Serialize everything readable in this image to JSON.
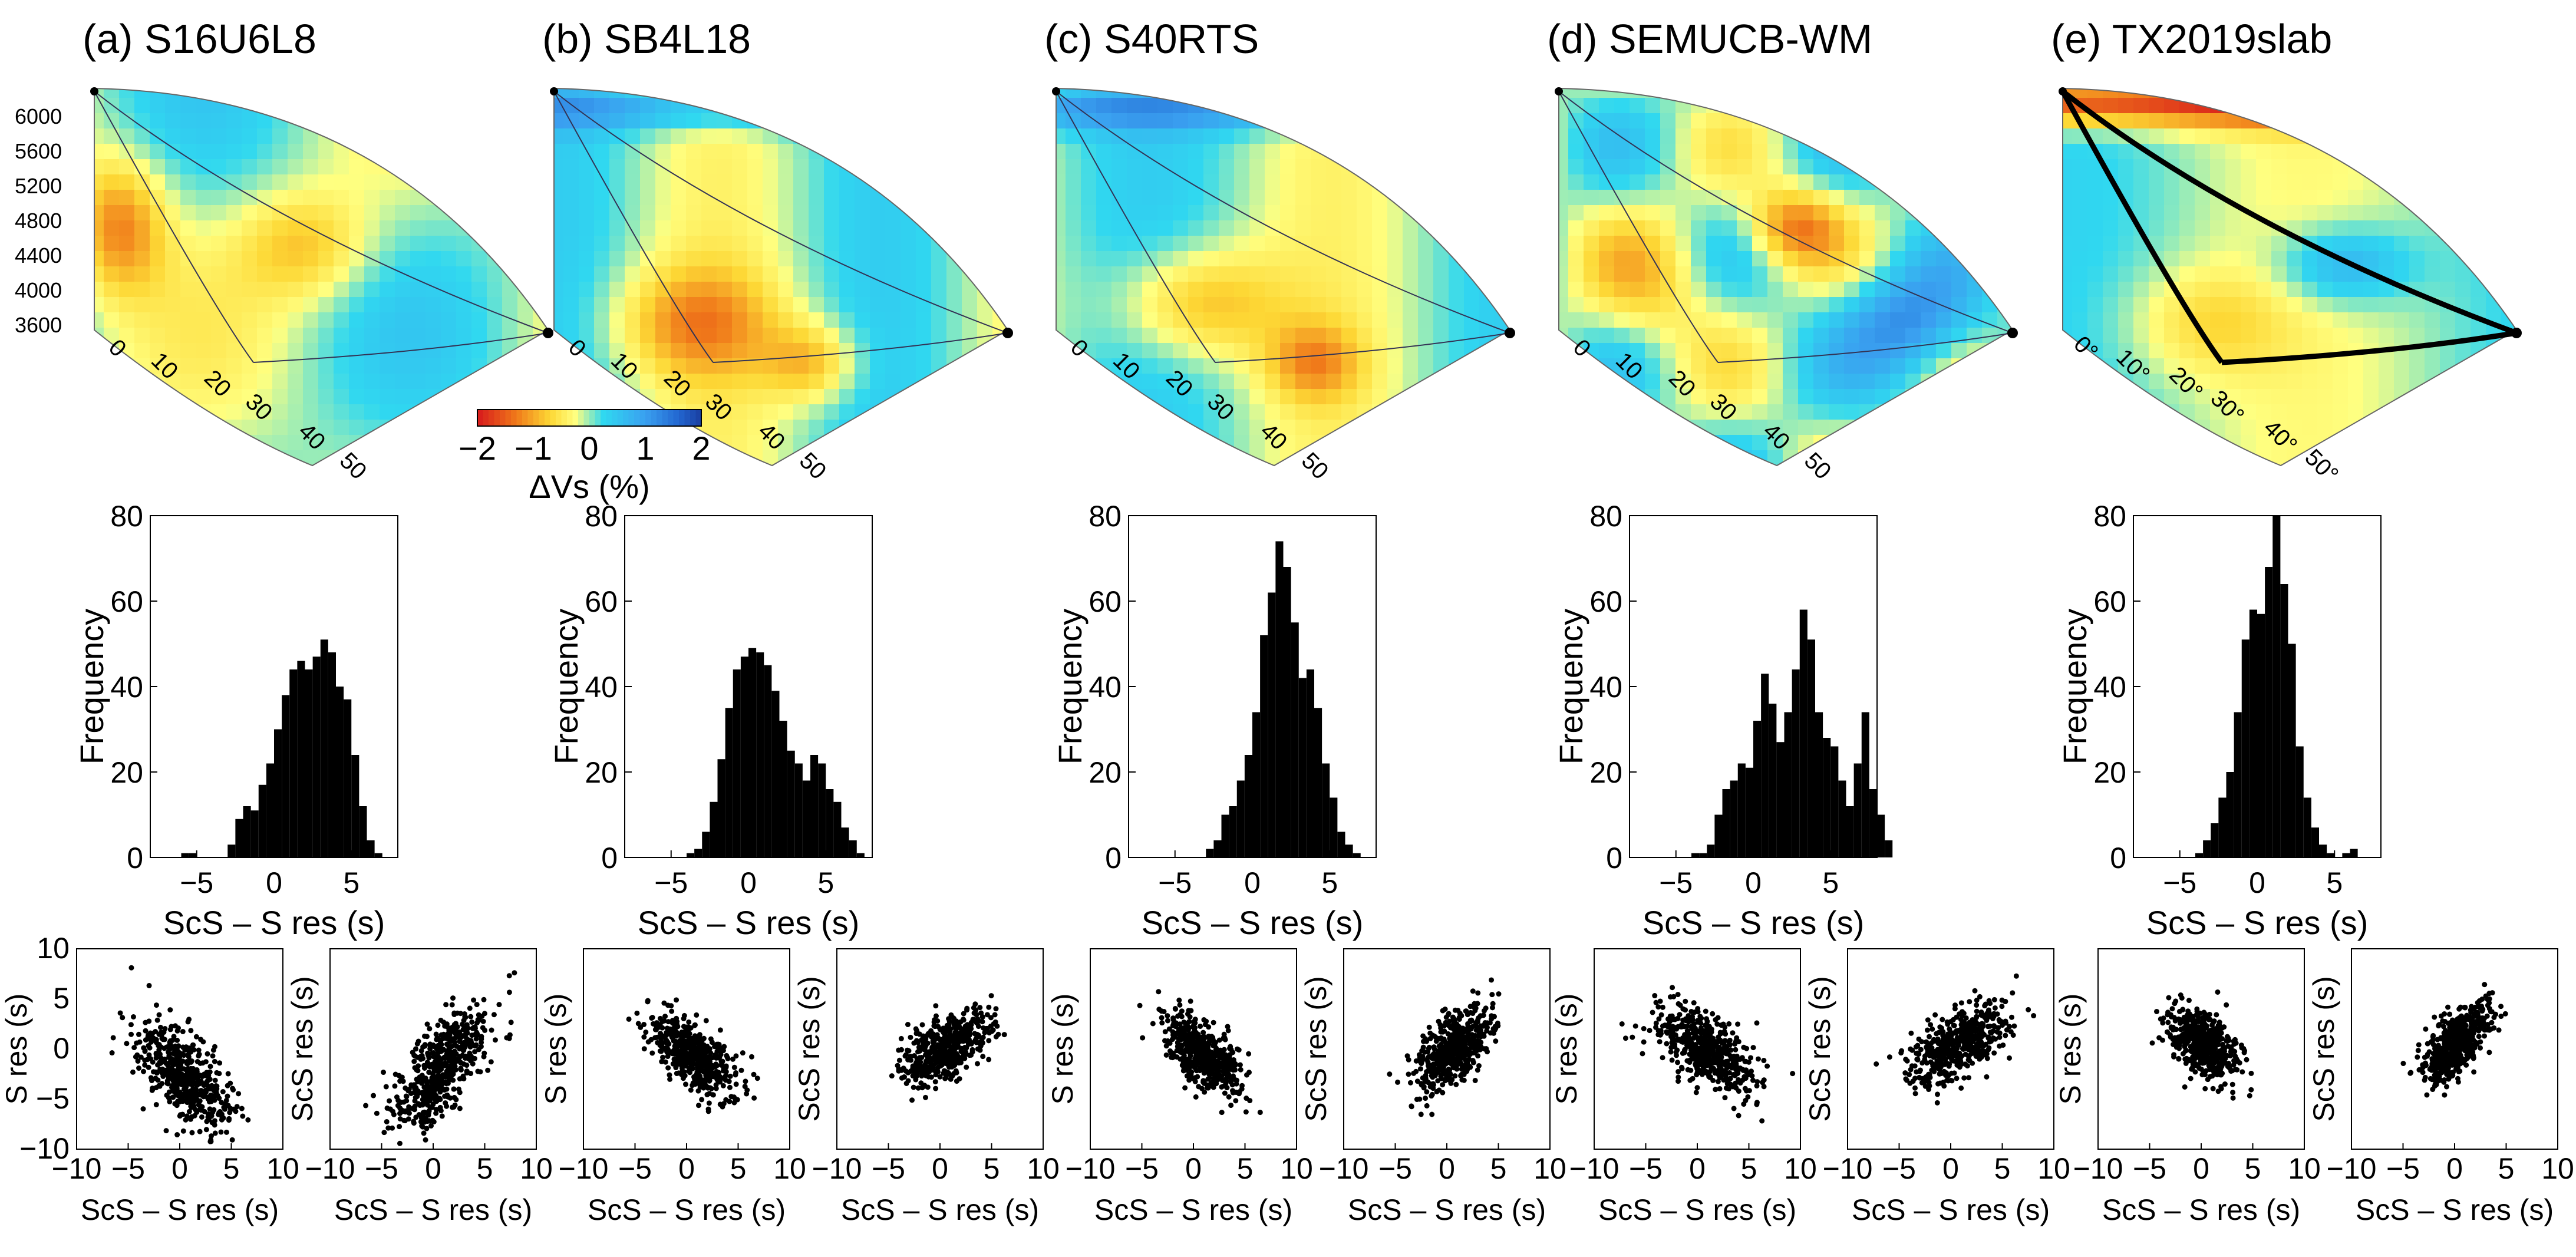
{
  "colorbar": {
    "label": "ΔVs (%)",
    "ticks": [
      "−2",
      "−1",
      "0",
      "1",
      "2"
    ],
    "colors": [
      "#d7191c",
      "#fdae61",
      "#ffff8c",
      "#ffff8c",
      "#40e0f0",
      "#40e0f0",
      "#2c7bb6",
      "#1a3ea0"
    ]
  },
  "chart_data": [
    {
      "type": "cross-section",
      "title": "(a) S16U6L8",
      "depth_ticks": [
        "6000",
        "5600",
        "5200",
        "4800",
        "4400",
        "4000",
        "3600"
      ],
      "angle_ticks": [
        "0",
        "10",
        "20",
        "30",
        "40",
        "50"
      ],
      "ray_count": 3
    },
    {
      "type": "cross-section",
      "title": "(b) SB4L18",
      "depth_ticks": [],
      "angle_ticks": [
        "0",
        "10",
        "20",
        "30",
        "40",
        "50"
      ],
      "ray_count": 3
    },
    {
      "type": "cross-section",
      "title": "(c) S40RTS",
      "depth_ticks": [],
      "angle_ticks": [
        "0",
        "10",
        "20",
        "30",
        "40",
        "50"
      ],
      "ray_count": 3
    },
    {
      "type": "cross-section",
      "title": "(d) SEMUCB-WM",
      "depth_ticks": [],
      "angle_ticks": [
        "0",
        "10",
        "20",
        "30",
        "40",
        "50"
      ],
      "ray_count": 3
    },
    {
      "type": "cross-section",
      "title": "(e) TX2019slab",
      "depth_ticks": [],
      "angle_ticks": [
        "0°",
        "10°",
        "20°",
        "30°",
        "40°",
        "50°"
      ],
      "ray_count": 3
    },
    {
      "type": "bar",
      "model": "S16U6L8",
      "xlabel": "ScS – S res (s)",
      "ylabel": "Frequency",
      "xlim": [
        -8,
        8
      ],
      "ylim": [
        0,
        80
      ],
      "xticks": [
        "−5",
        "0",
        "5"
      ],
      "yticks": [
        "0",
        "20",
        "40",
        "60",
        "80"
      ],
      "bin_width": 0.5,
      "bin_start": -6,
      "values": [
        1,
        1,
        0,
        0,
        0,
        0,
        3,
        9,
        12,
        11,
        17,
        22,
        30,
        38,
        44,
        46,
        44,
        47,
        51,
        48,
        40,
        37,
        24,
        12,
        4,
        1
      ]
    },
    {
      "type": "bar",
      "model": "SB4L18",
      "xlabel": "ScS – S res (s)",
      "ylabel": "Frequency",
      "xlim": [
        -8,
        8
      ],
      "ylim": [
        0,
        80
      ],
      "xticks": [
        "−5",
        "0",
        "5"
      ],
      "yticks": [
        "0",
        "20",
        "40",
        "60",
        "80"
      ],
      "bin_width": 0.5,
      "bin_start": -4,
      "values": [
        1,
        2,
        6,
        13,
        23,
        35,
        44,
        47,
        49,
        48,
        45,
        39,
        32,
        25,
        22,
        18,
        24,
        22,
        16,
        13,
        7,
        4,
        1
      ]
    },
    {
      "type": "bar",
      "model": "S40RTS",
      "xlabel": "ScS – S res (s)",
      "ylabel": "Frequency",
      "xlim": [
        -8,
        8
      ],
      "ylim": [
        0,
        80
      ],
      "xticks": [
        "−5",
        "0",
        "5"
      ],
      "yticks": [
        "0",
        "20",
        "40",
        "60",
        "80"
      ],
      "bin_width": 0.5,
      "bin_start": -3,
      "values": [
        2,
        4,
        10,
        12,
        18,
        24,
        34,
        52,
        62,
        74,
        68,
        55,
        42,
        44,
        35,
        22,
        14,
        6,
        3,
        1
      ]
    },
    {
      "type": "bar",
      "model": "SEMUCB-WM",
      "xlabel": "ScS – S res (s)",
      "ylabel": "Frequency",
      "xlim": [
        -8,
        8
      ],
      "ylim": [
        0,
        80
      ],
      "xticks": [
        "−5",
        "0",
        "5"
      ],
      "yticks": [
        "0",
        "20",
        "40",
        "60",
        "80"
      ],
      "bin_width": 0.5,
      "bin_start": -4,
      "values": [
        1,
        1,
        3,
        10,
        16,
        18,
        22,
        21,
        32,
        43,
        36,
        27,
        34,
        44,
        58,
        51,
        34,
        28,
        26,
        18,
        12,
        22,
        34,
        16,
        10,
        4
      ]
    },
    {
      "type": "bar",
      "model": "TX2019slab",
      "xlabel": "ScS – S res (s)",
      "ylabel": "Frequency",
      "xlim": [
        -8,
        8
      ],
      "ylim": [
        0,
        80
      ],
      "xticks": [
        "−5",
        "0",
        "5"
      ],
      "yticks": [
        "0",
        "20",
        "40",
        "60",
        "80"
      ],
      "bin_width": 0.5,
      "bin_start": -4,
      "values": [
        1,
        4,
        8,
        14,
        20,
        34,
        51,
        58,
        57,
        68,
        80,
        64,
        50,
        26,
        14,
        7,
        3,
        1,
        0,
        1,
        2
      ]
    },
    {
      "type": "scatter-pairs",
      "models": [
        "S16U6L8",
        "SB4L18",
        "S40RTS",
        "SEMUCB-WM",
        "TX2019slab"
      ],
      "xlabel": "ScS – S res (s)",
      "ylabel_left": "S res (s)",
      "ylabel_right": "ScS res (s)",
      "xlim": [
        -10,
        10
      ],
      "ylim": [
        -10,
        10
      ],
      "xticks": [
        "−10",
        "−5",
        "0",
        "5",
        "10"
      ],
      "yticks": [
        "10",
        "5",
        "0",
        "−5",
        "−10"
      ],
      "left_clusters": [
        {
          "cx": 0.5,
          "cy": -3.0,
          "sx": 2.2,
          "sy": 2.8,
          "rho": -0.6
        },
        {
          "cx": 0.5,
          "cy": -0.5,
          "sx": 2.2,
          "sy": 2.0,
          "rho": -0.6
        },
        {
          "cx": 0.8,
          "cy": -0.5,
          "sx": 1.8,
          "sy": 2.0,
          "rho": -0.6
        },
        {
          "cx": 0.8,
          "cy": 0.0,
          "sx": 2.4,
          "sy": 2.2,
          "rho": -0.6
        },
        {
          "cx": 0.2,
          "cy": 0.5,
          "sx": 1.6,
          "sy": 1.8,
          "rho": -0.5
        }
      ],
      "right_clusters": [
        {
          "cx": 0.8,
          "cy": -2.0,
          "sx": 2.2,
          "sy": 3.0,
          "rho": 0.65
        },
        {
          "cx": 0.5,
          "cy": 0.0,
          "sx": 2.2,
          "sy": 1.8,
          "rho": 0.6
        },
        {
          "cx": 0.8,
          "cy": 0.0,
          "sx": 1.8,
          "sy": 2.0,
          "rho": 0.6
        },
        {
          "cx": 0.8,
          "cy": 0.5,
          "sx": 2.4,
          "sy": 2.0,
          "rho": 0.6
        },
        {
          "cx": 0.2,
          "cy": 0.5,
          "sx": 1.6,
          "sy": 2.0,
          "rho": 0.6
        }
      ]
    }
  ]
}
